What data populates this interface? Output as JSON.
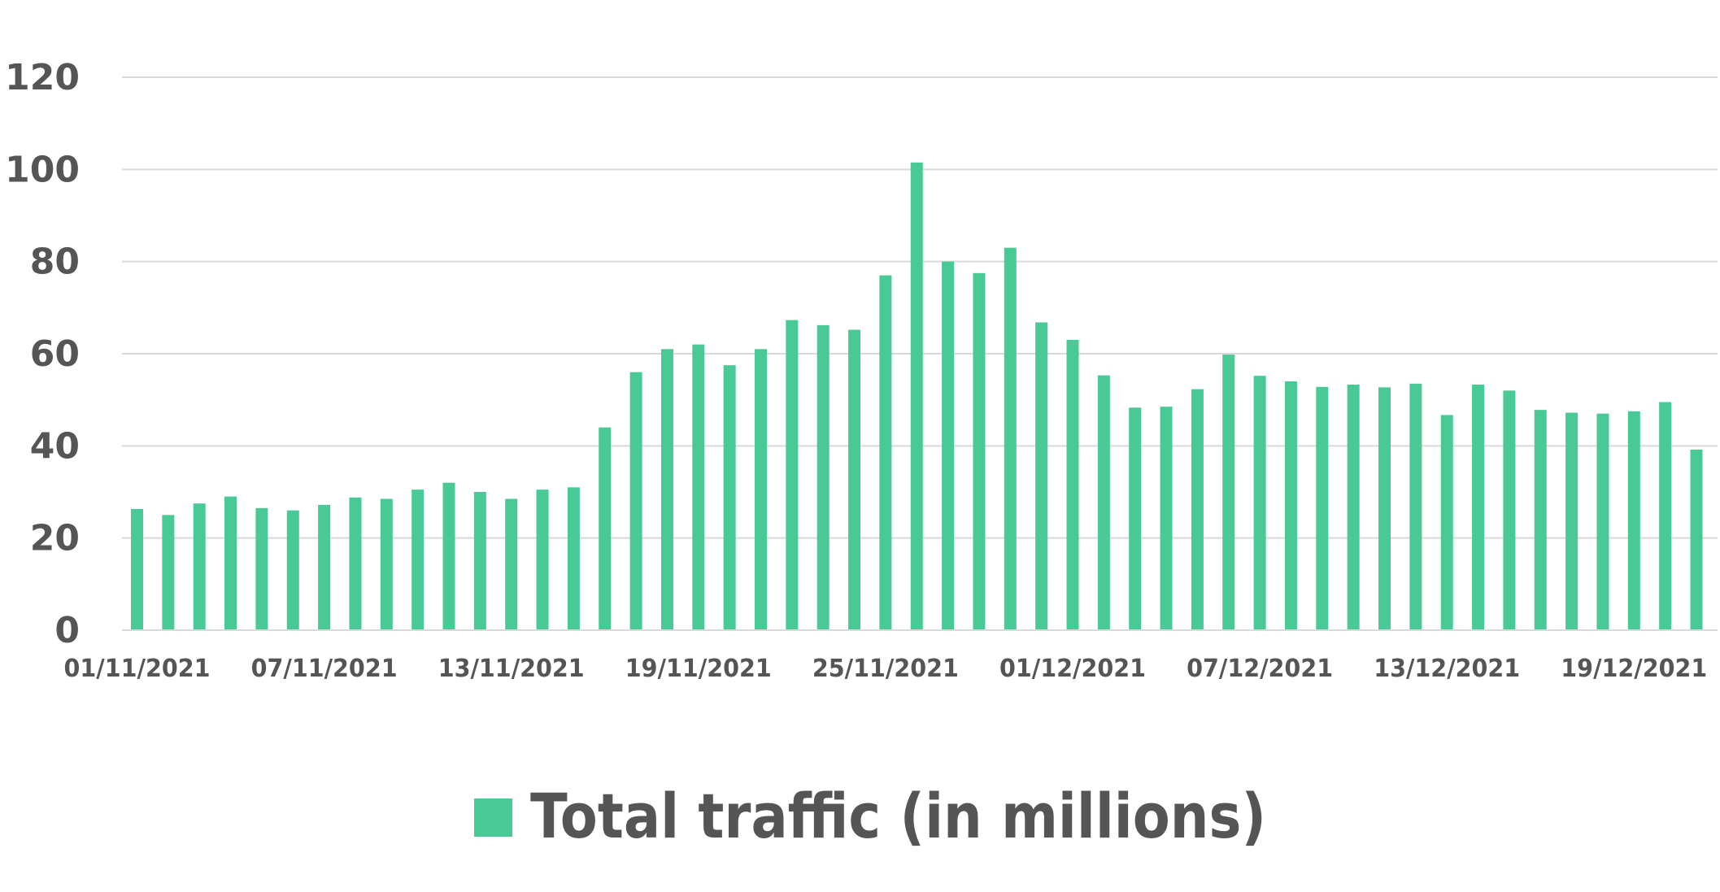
{
  "chart_data": {
    "type": "bar",
    "title": "",
    "xlabel": "",
    "ylabel": "",
    "ylim": [
      0,
      120
    ],
    "yticks": [
      0,
      20,
      40,
      60,
      80,
      100,
      120
    ],
    "grid": true,
    "legend_position": "bottom",
    "categories": [
      "01/11/2021",
      "02/11/2021",
      "03/11/2021",
      "04/11/2021",
      "05/11/2021",
      "06/11/2021",
      "07/11/2021",
      "08/11/2021",
      "09/11/2021",
      "10/11/2021",
      "11/11/2021",
      "12/11/2021",
      "13/11/2021",
      "14/11/2021",
      "15/11/2021",
      "16/11/2021",
      "17/11/2021",
      "18/11/2021",
      "19/11/2021",
      "20/11/2021",
      "21/11/2021",
      "22/11/2021",
      "23/11/2021",
      "24/11/2021",
      "25/11/2021",
      "26/11/2021",
      "27/11/2021",
      "28/11/2021",
      "29/11/2021",
      "30/11/2021",
      "01/12/2021",
      "02/12/2021",
      "03/12/2021",
      "04/12/2021",
      "05/12/2021",
      "06/12/2021",
      "07/12/2021",
      "08/12/2021",
      "09/12/2021",
      "10/12/2021",
      "11/12/2021",
      "12/12/2021",
      "13/12/2021",
      "14/12/2021",
      "15/12/2021",
      "16/12/2021",
      "17/12/2021",
      "18/12/2021",
      "19/12/2021",
      "20/12/2021",
      "21/12/2021"
    ],
    "x_tick_labels": [
      "01/11/2021",
      "07/11/2021",
      "13/11/2021",
      "19/11/2021",
      "25/11/2021",
      "01/12/2021",
      "07/12/2021",
      "13/12/2021",
      "19/12/2021"
    ],
    "series": [
      {
        "name": "Total traffic (in millions)",
        "color": "#48c995",
        "values": [
          26.3,
          25.0,
          27.5,
          29.0,
          26.5,
          26.0,
          27.2,
          28.8,
          28.5,
          30.5,
          32.0,
          30.0,
          28.5,
          30.5,
          31.0,
          44.0,
          56.0,
          61.0,
          62.0,
          57.5,
          61.0,
          67.3,
          66.2,
          65.2,
          77.0,
          101.5,
          80.0,
          77.5,
          83.0,
          66.8,
          63.0,
          55.3,
          48.3,
          48.5,
          52.3,
          59.8,
          55.2,
          54.0,
          52.8,
          53.3,
          52.7,
          53.5,
          46.7,
          53.3,
          52.0,
          47.8,
          47.2,
          47.0,
          47.5,
          49.5,
          39.2
        ]
      }
    ]
  },
  "colors": {
    "bar": "#48c995",
    "grid": "#d9d9d9",
    "text": "#555555"
  }
}
